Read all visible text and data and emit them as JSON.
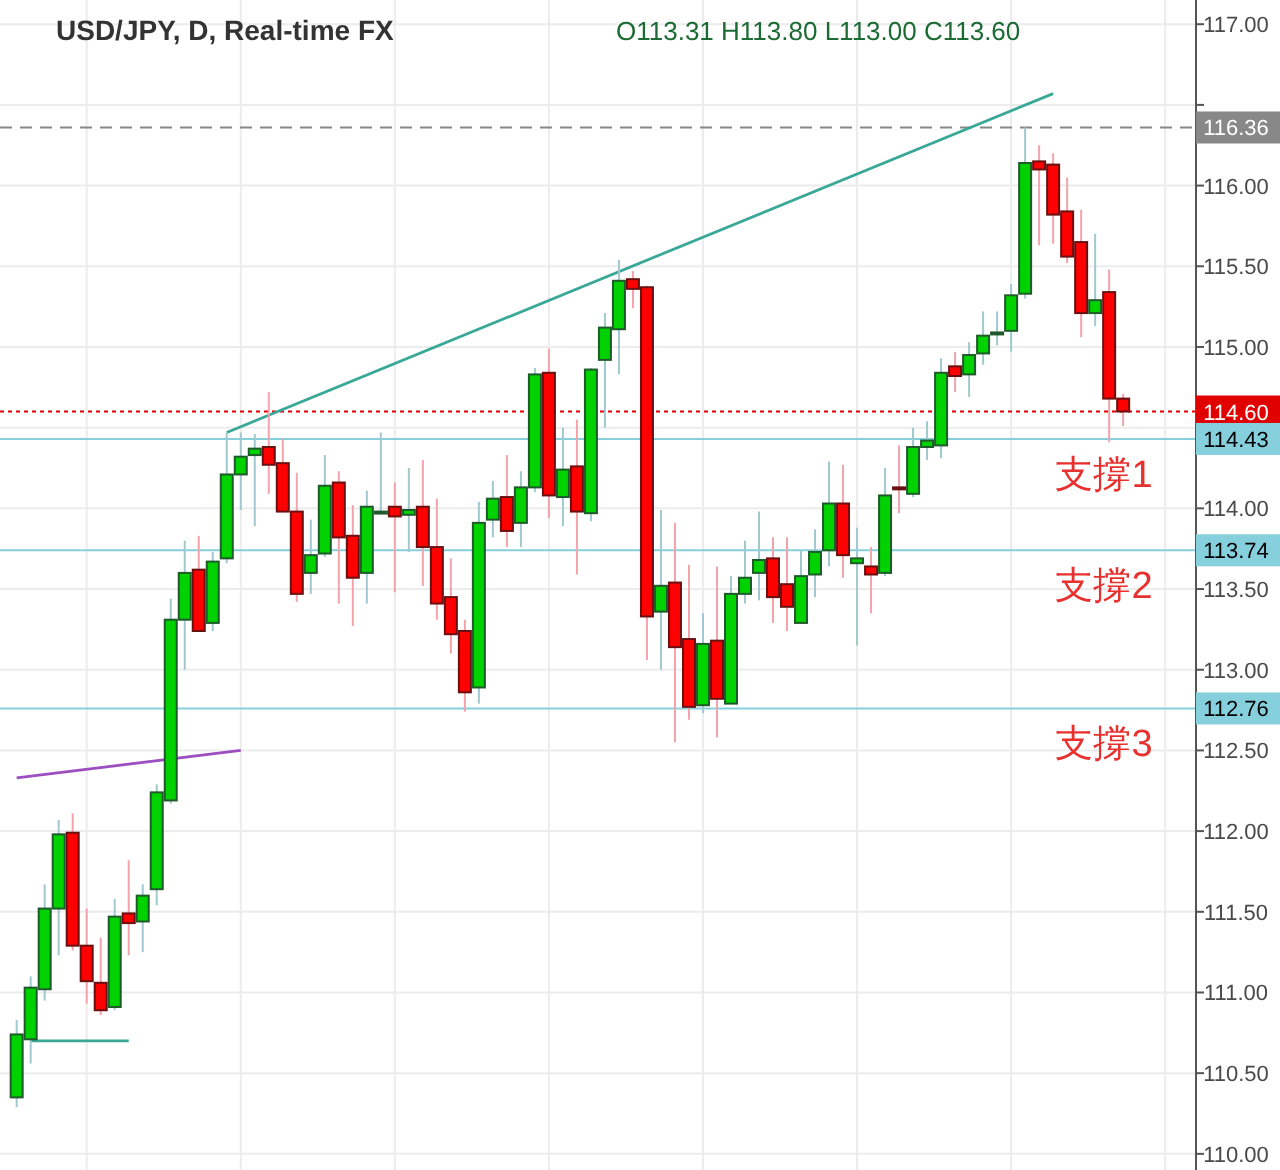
{
  "chart_data": {
    "type": "candlestick",
    "title": "USD/JPY, D, Real-time FX",
    "subtitle": "O113.31 H113.80 L113.00 C113.60",
    "categories": [
      null,
      null,
      null,
      null,
      null,
      null,
      null,
      null,
      null,
      null,
      null,
      null,
      null,
      null,
      null,
      null,
      null,
      null,
      null,
      null,
      null,
      null,
      null,
      null,
      null,
      null,
      null,
      null,
      null,
      null,
      null,
      null,
      null,
      null,
      null,
      null,
      null,
      null,
      null,
      null,
      null,
      null,
      null,
      null,
      null,
      null,
      null,
      null,
      null,
      null,
      null,
      null,
      null,
      null,
      null,
      null,
      null,
      null,
      null,
      null,
      null,
      null,
      null,
      null,
      null,
      null,
      null,
      null,
      null,
      null,
      null,
      null,
      null,
      null,
      null,
      null,
      null,
      null,
      null,
      null
    ],
    "ohlc": [
      [
        110.35,
        110.83,
        110.29,
        110.74
      ],
      [
        110.71,
        111.1,
        110.56,
        111.03
      ],
      [
        111.02,
        111.67,
        110.95,
        111.52
      ],
      [
        111.52,
        112.07,
        111.23,
        111.98
      ],
      [
        111.99,
        112.11,
        111.26,
        111.29
      ],
      [
        111.29,
        111.52,
        110.93,
        111.07
      ],
      [
        111.06,
        111.34,
        110.86,
        110.89
      ],
      [
        110.91,
        111.58,
        110.89,
        111.47
      ],
      [
        111.49,
        111.82,
        111.23,
        111.43
      ],
      [
        111.44,
        111.67,
        111.25,
        111.6
      ],
      [
        111.64,
        112.29,
        111.54,
        112.24
      ],
      [
        112.19,
        113.44,
        112.17,
        113.31
      ],
      [
        113.31,
        113.8,
        113.0,
        113.6
      ],
      [
        113.62,
        113.83,
        113.24,
        113.24
      ],
      [
        113.29,
        113.73,
        113.24,
        113.67
      ],
      [
        113.69,
        114.47,
        113.66,
        114.21
      ],
      [
        114.21,
        114.47,
        113.99,
        114.32
      ],
      [
        114.33,
        114.46,
        113.89,
        114.37
      ],
      [
        114.38,
        114.72,
        114.09,
        114.27
      ],
      [
        114.28,
        114.43,
        113.98,
        113.98
      ],
      [
        113.98,
        114.22,
        113.42,
        113.47
      ],
      [
        113.6,
        113.93,
        113.47,
        113.71
      ],
      [
        113.72,
        114.33,
        113.7,
        114.14
      ],
      [
        114.16,
        114.23,
        113.41,
        113.82
      ],
      [
        113.83,
        114.02,
        113.27,
        113.57
      ],
      [
        113.6,
        114.11,
        113.41,
        114.01
      ],
      [
        113.98,
        114.47,
        113.97,
        113.98
      ],
      [
        114.01,
        114.16,
        113.48,
        113.95
      ],
      [
        113.96,
        114.25,
        113.73,
        113.99
      ],
      [
        114.01,
        114.3,
        113.52,
        113.76
      ],
      [
        113.76,
        114.06,
        113.31,
        113.41
      ],
      [
        113.45,
        113.69,
        113.1,
        113.22
      ],
      [
        113.24,
        113.31,
        112.74,
        112.86
      ],
      [
        112.89,
        114.04,
        112.79,
        113.91
      ],
      [
        113.93,
        114.17,
        113.82,
        114.06
      ],
      [
        114.07,
        114.33,
        113.76,
        113.86
      ],
      [
        113.91,
        114.23,
        113.76,
        114.13
      ],
      [
        114.13,
        114.87,
        114.1,
        114.83
      ],
      [
        114.84,
        114.99,
        113.94,
        114.08
      ],
      [
        114.07,
        114.5,
        113.89,
        114.24
      ],
      [
        114.26,
        114.55,
        113.59,
        113.98
      ],
      [
        113.97,
        114.87,
        113.92,
        114.86
      ],
      [
        114.92,
        115.21,
        114.5,
        115.12
      ],
      [
        115.11,
        115.54,
        114.83,
        115.41
      ],
      [
        115.42,
        115.47,
        115.24,
        115.36
      ],
      [
        115.37,
        115.38,
        113.06,
        113.33
      ],
      [
        113.36,
        113.99,
        113.0,
        113.52
      ],
      [
        113.54,
        113.91,
        112.55,
        113.14
      ],
      [
        113.19,
        113.65,
        112.69,
        112.77
      ],
      [
        112.78,
        113.35,
        112.73,
        113.16
      ],
      [
        113.18,
        113.64,
        112.58,
        112.82
      ],
      [
        112.79,
        113.58,
        112.79,
        113.47
      ],
      [
        113.47,
        113.8,
        113.41,
        113.57
      ],
      [
        113.6,
        113.98,
        113.43,
        113.68
      ],
      [
        113.69,
        113.82,
        113.29,
        113.45
      ],
      [
        113.53,
        113.82,
        113.24,
        113.39
      ],
      [
        113.29,
        113.74,
        113.29,
        113.58
      ],
      [
        113.59,
        113.87,
        113.45,
        113.73
      ],
      [
        113.74,
        114.29,
        113.64,
        114.03
      ],
      [
        114.03,
        114.27,
        113.57,
        113.71
      ],
      [
        113.66,
        113.88,
        113.15,
        113.69
      ],
      [
        113.64,
        113.76,
        113.35,
        113.59
      ],
      [
        113.6,
        114.25,
        113.58,
        114.08
      ],
      [
        114.13,
        114.39,
        113.97,
        114.12
      ],
      [
        114.09,
        114.5,
        114.07,
        114.38
      ],
      [
        114.38,
        114.54,
        114.3,
        114.42
      ],
      [
        114.39,
        114.93,
        114.31,
        114.84
      ],
      [
        114.88,
        114.97,
        114.72,
        114.82
      ],
      [
        114.83,
        115.03,
        114.69,
        114.95
      ],
      [
        114.96,
        115.22,
        114.89,
        115.07
      ],
      [
        115.08,
        115.22,
        115.01,
        115.09
      ],
      [
        115.1,
        115.39,
        114.97,
        115.32
      ],
      [
        115.33,
        116.36,
        115.3,
        116.14
      ],
      [
        116.15,
        116.25,
        115.63,
        116.1
      ],
      [
        116.13,
        116.2,
        115.64,
        115.82
      ],
      [
        115.84,
        116.05,
        115.52,
        115.56
      ],
      [
        115.65,
        115.85,
        115.06,
        115.21
      ],
      [
        115.21,
        115.7,
        115.13,
        115.29
      ],
      [
        115.34,
        115.48,
        114.41,
        114.68
      ],
      [
        114.68,
        114.71,
        114.51,
        114.6
      ]
    ],
    "series": [
      {
        "type": "line",
        "color": "#3aa896",
        "values": [
          null,
          null,
          null,
          null,
          null,
          null,
          null,
          null,
          null,
          null,
          null,
          null,
          null,
          null,
          null,
          114.47,
          null,
          null,
          null,
          null,
          null,
          null,
          null,
          null,
          null,
          null,
          null,
          null,
          null,
          null,
          null,
          null,
          null,
          null,
          null,
          null,
          null,
          null,
          null,
          null,
          null,
          null,
          null,
          null,
          null,
          null,
          null,
          null,
          null,
          null,
          null,
          null,
          null,
          null,
          null,
          null,
          null,
          null,
          null,
          null,
          null,
          null,
          null,
          null,
          null,
          null,
          null,
          null,
          null,
          null,
          null,
          null,
          null,
          null,
          116.57,
          null,
          null,
          null,
          null,
          null
        ]
      },
      {
        "type": "line",
        "color": "#9b4fc0",
        "values": [
          112.33,
          null,
          null,
          null,
          null,
          null,
          null,
          null,
          null,
          null,
          null,
          null,
          null,
          null,
          null,
          null,
          112.5,
          null,
          null,
          null,
          null,
          null,
          null,
          null,
          null,
          null,
          null,
          null,
          null,
          null,
          null,
          null,
          null,
          null,
          null,
          null,
          null,
          null,
          null,
          null,
          null,
          null,
          null,
          null,
          null,
          null,
          null,
          null,
          null,
          null,
          null,
          null,
          null,
          null,
          null,
          null,
          null,
          null,
          null,
          null,
          null,
          null,
          null,
          null,
          null,
          null,
          null,
          null,
          null,
          null,
          null,
          null,
          null,
          null,
          null,
          null,
          null,
          null,
          null,
          null
        ]
      },
      {
        "type": "line",
        "color": "#3aa896",
        "values": [
          null,
          110.7,
          null,
          null,
          null,
          null,
          null,
          null,
          110.7,
          null,
          null,
          null,
          null,
          null,
          null,
          null,
          null,
          null,
          null,
          null,
          null,
          null,
          null,
          null,
          null,
          null,
          null,
          null,
          null,
          null,
          null,
          null,
          null,
          null,
          null,
          null,
          null,
          null,
          null,
          null,
          null,
          null,
          null,
          null,
          null,
          null,
          null,
          null,
          null,
          null,
          null,
          null,
          null,
          null,
          null,
          null,
          null,
          null,
          null,
          null,
          null,
          null,
          null,
          null,
          null,
          null,
          null,
          null,
          null,
          null,
          null,
          null,
          null,
          null,
          null,
          null,
          null,
          null,
          null,
          null
        ]
      }
    ],
    "annotations": [
      "116.36",
      "114.60",
      "114.43",
      "113.74",
      "112.76"
    ],
    "ref_lines": [
      {
        "axis": "y",
        "value": 116.36,
        "color": "#888888",
        "line_style": "dashed"
      },
      {
        "axis": "y",
        "value": 114.6,
        "color": "#e00000",
        "line_style": "dotted"
      },
      {
        "axis": "y",
        "value": 114.43,
        "label": "支撐1",
        "color": "#86cfdc"
      },
      {
        "axis": "y",
        "value": 113.74,
        "label": "支撐2",
        "color": "#86cfdc"
      },
      {
        "axis": "y",
        "value": 112.76,
        "label": "支撐3",
        "color": "#86cfdc"
      }
    ],
    "ylim": [
      109.9,
      117.15
    ],
    "yticks": [
      {
        "value": 110,
        "label": "110.00"
      },
      {
        "value": 110.5,
        "label": "110.50"
      },
      {
        "value": 111,
        "label": "111.00"
      },
      {
        "value": 111.5,
        "label": "111.50"
      },
      {
        "value": 112,
        "label": "112.00"
      },
      {
        "value": 112.5,
        "label": "112.50"
      },
      {
        "value": 113,
        "label": "113.00"
      },
      {
        "value": 113.5,
        "label": "113.50"
      },
      {
        "value": 114,
        "label": "114.00"
      },
      {
        "value": 114.5,
        "label": null
      },
      {
        "value": 115,
        "label": "115.00"
      },
      {
        "value": 115.5,
        "label": "115.50"
      },
      {
        "value": 116,
        "label": "116.00"
      },
      {
        "value": 116.5,
        "label": null
      },
      {
        "value": 117,
        "label": "117.00"
      }
    ],
    "tick_labels": "y",
    "grid": true
  }
}
